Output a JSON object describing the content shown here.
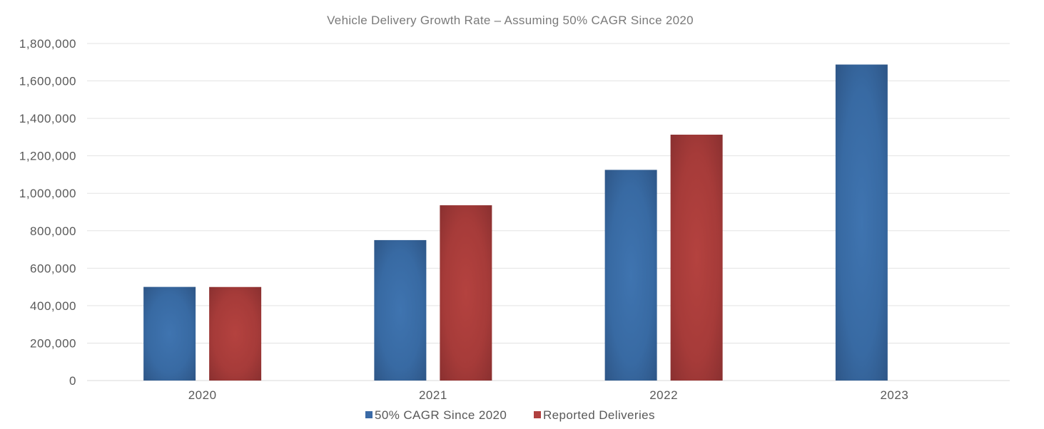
{
  "chart_data": {
    "type": "bar",
    "title": "Vehicle Delivery Growth Rate – Assuming 50% CAGR Since 2020",
    "xlabel": "",
    "ylabel": "",
    "categories": [
      "2020",
      "2021",
      "2022",
      "2023"
    ],
    "series": [
      {
        "name": "50% CAGR Since 2020",
        "color": "#3a6aa6",
        "values": [
          500000,
          750000,
          1125000,
          1687500
        ]
      },
      {
        "name": "Reported Deliveries",
        "color": "#b0403f",
        "values": [
          499550,
          936000,
          1313000,
          null
        ]
      }
    ],
    "ylim": [
      0,
      1800000
    ],
    "yticks": [
      0,
      200000,
      400000,
      600000,
      800000,
      1000000,
      1200000,
      1400000,
      1600000,
      1800000
    ],
    "ytick_labels": [
      "0",
      "200,000",
      "400,000",
      "600,000",
      "800,000",
      "1,000,000",
      "1,200,000",
      "1,400,000",
      "1,600,000",
      "1,800,000"
    ],
    "grid": true,
    "legend_position": "bottom"
  }
}
